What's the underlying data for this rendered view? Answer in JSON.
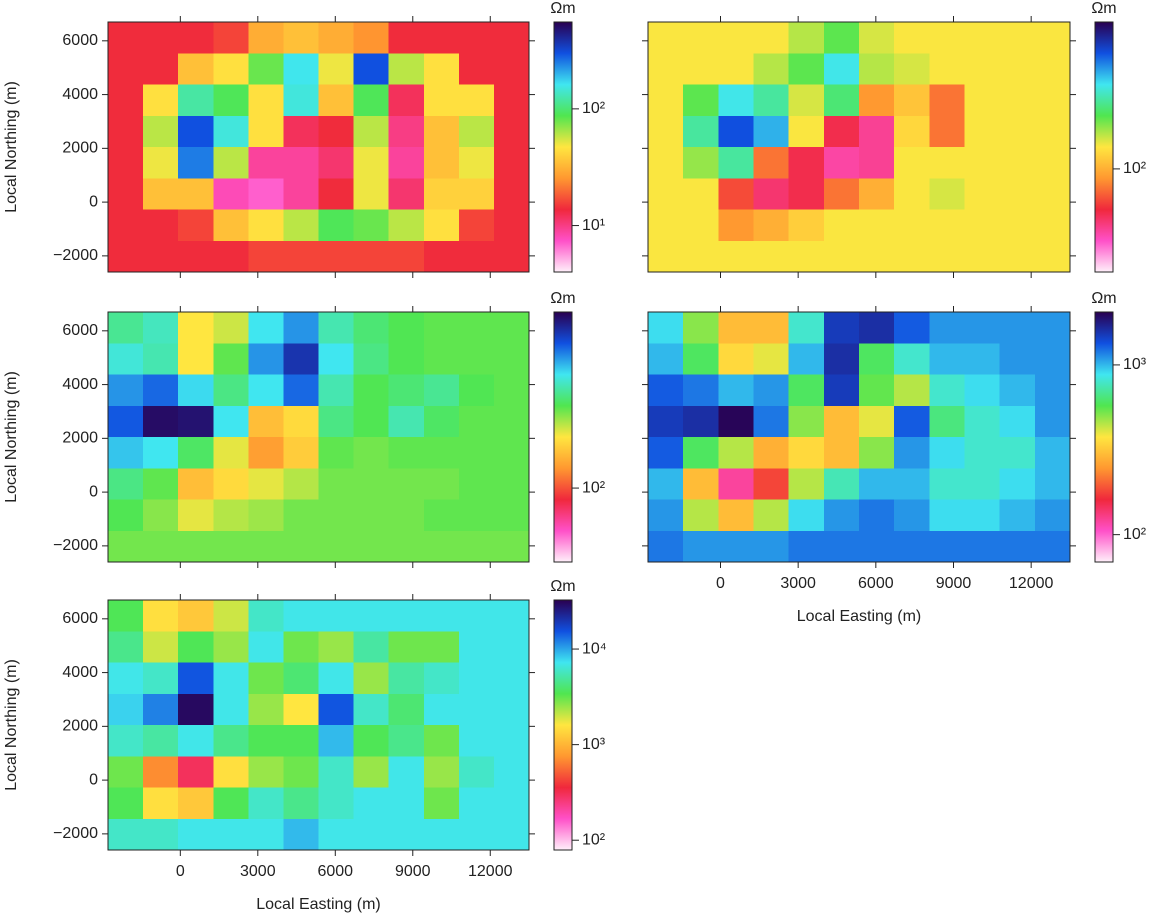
{
  "chart_data": [
    {
      "type": "heatmap",
      "y_label": "Local Northing (m)",
      "x_tick_labels": false,
      "y_tick_labels": true,
      "xlim": [
        -2800,
        13500
      ],
      "ylim": [
        -2600,
        6700
      ],
      "xticks": [
        0,
        3000,
        6000,
        9000,
        12000
      ],
      "yticks": [
        {
          "value": -2000,
          "label": "−2000"
        },
        0,
        2000,
        4000,
        6000
      ],
      "colormap": [
        "#fff0fa",
        "#ff50c8",
        "#f0283c",
        "#ff9830",
        "#ffe640",
        "#50e650",
        "#40e6f0",
        "#1050e0",
        "#2a0050"
      ],
      "colorbar": {
        "label": "Ωm",
        "scale": "log",
        "clim": [
          4,
          555
        ],
        "ticks": [
          {
            "value": 10,
            "label": "10¹"
          },
          {
            "value": 100,
            "label": "10²"
          }
        ]
      },
      "z": [
        [
          14,
          14,
          14,
          16,
          30,
          35,
          30,
          25,
          14,
          14,
          14,
          14
        ],
        [
          14,
          14,
          35,
          45,
          80,
          160,
          50,
          300,
          60,
          45,
          14,
          14
        ],
        [
          14,
          45,
          120,
          90,
          45,
          150,
          35,
          90,
          12,
          45,
          45,
          14
        ],
        [
          14,
          60,
          300,
          150,
          45,
          12,
          14,
          60,
          10,
          35,
          60,
          14
        ],
        [
          14,
          50,
          250,
          60,
          9,
          9,
          11,
          50,
          9,
          35,
          50,
          14
        ],
        [
          14,
          35,
          35,
          8,
          7,
          9,
          14,
          50,
          11,
          40,
          40,
          14
        ],
        [
          14,
          14,
          16,
          35,
          45,
          60,
          90,
          80,
          60,
          45,
          16,
          14
        ],
        [
          14,
          14,
          14,
          14,
          16,
          16,
          16,
          16,
          16,
          14,
          14,
          14
        ]
      ]
    },
    {
      "type": "heatmap",
      "x_tick_labels": false,
      "y_tick_labels": false,
      "xlim": [
        -2800,
        13500
      ],
      "ylim": [
        -2600,
        6700
      ],
      "xticks": [
        0,
        3000,
        6000,
        9000,
        12000
      ],
      "yticks": [
        -2000,
        0,
        2000,
        4000,
        6000
      ],
      "colormap": [
        "#fff0fa",
        "#ff50c8",
        "#f0283c",
        "#ff9830",
        "#ffe640",
        "#50e650",
        "#40e6f0",
        "#1050e0",
        "#2a0050"
      ],
      "colorbar": {
        "label": "Ωm",
        "scale": "log",
        "clim": [
          30.5,
          543
        ],
        "ticks": [
          {
            "value": 100,
            "label": "10²"
          }
        ]
      },
      "z": [
        [
          130,
          130,
          130,
          130,
          150,
          180,
          140,
          130,
          130,
          130,
          130,
          130
        ],
        [
          130,
          130,
          130,
          150,
          180,
          260,
          150,
          140,
          130,
          130,
          130,
          130
        ],
        [
          130,
          180,
          260,
          220,
          140,
          200,
          90,
          110,
          80,
          130,
          130,
          130
        ],
        [
          130,
          220,
          380,
          300,
          130,
          60,
          50,
          120,
          80,
          130,
          130,
          130
        ],
        [
          130,
          160,
          220,
          80,
          60,
          48,
          50,
          130,
          130,
          130,
          130,
          130
        ],
        [
          130,
          130,
          70,
          55,
          60,
          80,
          100,
          130,
          140,
          130,
          130,
          130
        ],
        [
          130,
          130,
          90,
          100,
          115,
          130,
          130,
          130,
          130,
          130,
          130,
          130
        ],
        [
          130,
          130,
          130,
          130,
          130,
          130,
          130,
          130,
          130,
          130,
          130,
          130
        ]
      ]
    },
    {
      "type": "heatmap",
      "y_label": "Local Northing (m)",
      "x_tick_labels": false,
      "y_tick_labels": true,
      "xlim": [
        -2800,
        13500
      ],
      "ylim": [
        -2600,
        6700
      ],
      "xticks": [
        0,
        3000,
        6000,
        9000,
        12000
      ],
      "yticks": [
        {
          "value": -2000,
          "label": "−2000"
        },
        0,
        2000,
        4000,
        6000
      ],
      "colormap": [
        "#fff0fa",
        "#ff50c8",
        "#f0283c",
        "#ff9830",
        "#ffe640",
        "#50e650",
        "#40e6f0",
        "#1050e0",
        "#2a0050"
      ],
      "colorbar": {
        "label": "Ωm",
        "scale": "log",
        "clim": [
          42.7,
          759
        ],
        "ticks": [
          {
            "value": 100,
            "label": "10²"
          }
        ]
      },
      "z": [
        [
          300,
          330,
          180,
          200,
          370,
          450,
          320,
          280,
          260,
          250,
          250,
          250
        ],
        [
          350,
          320,
          180,
          250,
          450,
          600,
          370,
          290,
          260,
          250,
          250,
          250
        ],
        [
          450,
          500,
          380,
          290,
          370,
          500,
          320,
          260,
          280,
          300,
          260,
          250
        ],
        [
          520,
          720,
          700,
          370,
          150,
          170,
          290,
          260,
          320,
          270,
          250,
          250
        ],
        [
          400,
          370,
          270,
          190,
          130,
          160,
          250,
          240,
          250,
          250,
          250,
          250
        ],
        [
          290,
          250,
          150,
          170,
          190,
          210,
          240,
          240,
          240,
          240,
          250,
          250
        ],
        [
          260,
          230,
          190,
          210,
          220,
          240,
          240,
          240,
          240,
          250,
          250,
          250
        ],
        [
          240,
          240,
          240,
          240,
          240,
          240,
          240,
          240,
          240,
          240,
          240,
          240
        ]
      ]
    },
    {
      "type": "heatmap",
      "x_label": "Local Easting (m)",
      "x_tick_labels": true,
      "y_tick_labels": false,
      "xlim": [
        -2800,
        13500
      ],
      "ylim": [
        -2600,
        6700
      ],
      "xticks": [
        0,
        3000,
        6000,
        9000,
        12000
      ],
      "yticks": [
        -2000,
        0,
        2000,
        4000,
        6000
      ],
      "colormap": [
        "#fff0fa",
        "#ff50c8",
        "#f0283c",
        "#ff9830",
        "#ffe640",
        "#50e650",
        "#40e6f0",
        "#1050e0",
        "#2a0050"
      ],
      "colorbar": {
        "label": "Ωm",
        "scale": "log",
        "clim": [
          69,
          2050
        ],
        "ticks": [
          {
            "value": 100,
            "label": "10²"
          },
          {
            "value": 1000,
            "label": "10³"
          }
        ]
      },
      "z": [
        [
          900,
          500,
          300,
          300,
          800,
          1500,
          1600,
          1300,
          1100,
          1100,
          1100,
          1100
        ],
        [
          1000,
          600,
          350,
          400,
          1000,
          1600,
          600,
          800,
          1000,
          1000,
          1100,
          1100
        ],
        [
          1300,
          1200,
          1000,
          1100,
          600,
          1500,
          550,
          450,
          800,
          900,
          1000,
          1100
        ],
        [
          1500,
          1600,
          2000,
          1200,
          500,
          300,
          400,
          1300,
          650,
          800,
          900,
          1100
        ],
        [
          1300,
          600,
          450,
          280,
          350,
          300,
          500,
          1100,
          900,
          800,
          800,
          1000
        ],
        [
          1000,
          300,
          120,
          180,
          450,
          750,
          1000,
          1000,
          800,
          800,
          900,
          1000
        ],
        [
          1100,
          450,
          300,
          450,
          900,
          1100,
          1200,
          1100,
          900,
          900,
          1000,
          1100
        ],
        [
          1200,
          1100,
          1100,
          1100,
          1200,
          1200,
          1200,
          1200,
          1200,
          1200,
          1200,
          1200
        ]
      ]
    },
    {
      "type": "heatmap",
      "x_label": "Local Easting (m)",
      "y_label": "Local Northing (m)",
      "x_tick_labels": true,
      "y_tick_labels": true,
      "xlim": [
        -2800,
        13500
      ],
      "ylim": [
        -2600,
        6700
      ],
      "xticks": [
        0,
        3000,
        6000,
        9000,
        12000
      ],
      "yticks": [
        {
          "value": -2000,
          "label": "−2000"
        },
        0,
        2000,
        4000,
        6000
      ],
      "colormap": [
        "#fff0fa",
        "#ff50c8",
        "#f0283c",
        "#ff9830",
        "#ffe640",
        "#50e650",
        "#40e6f0",
        "#1050e0",
        "#2a0050"
      ],
      "colorbar": {
        "label": "Ωm",
        "scale": "log",
        "clim": [
          79,
          32600
        ],
        "ticks": [
          {
            "value": 100,
            "label": "10²"
          },
          {
            "value": 1000,
            "label": "10³"
          },
          {
            "value": 10000,
            "label": "10⁴"
          }
        ]
      },
      "z": [
        [
          3500,
          1500,
          1200,
          2000,
          6000,
          7000,
          7000,
          7000,
          7000,
          7000,
          7000,
          7000
        ],
        [
          4500,
          2000,
          3500,
          2500,
          7000,
          3000,
          2500,
          5000,
          3000,
          3000,
          7000,
          7000
        ],
        [
          7000,
          6000,
          15000,
          7000,
          3000,
          4000,
          7000,
          2500,
          5000,
          6000,
          7000,
          7000
        ],
        [
          8000,
          12000,
          30000,
          7000,
          2500,
          1600,
          15000,
          6000,
          4000,
          7000,
          7000,
          7000
        ],
        [
          6000,
          5000,
          7000,
          4500,
          3500,
          3500,
          9000,
          3500,
          4500,
          3000,
          7000,
          7000
        ],
        [
          3000,
          700,
          300,
          1500,
          2500,
          3000,
          6000,
          2500,
          7000,
          2500,
          6000,
          7000
        ],
        [
          3500,
          1500,
          1200,
          3500,
          6000,
          4500,
          6000,
          7000,
          7000,
          3000,
          7000,
          7000
        ],
        [
          6000,
          6000,
          7000,
          7000,
          7000,
          9000,
          7000,
          7000,
          7000,
          7000,
          7000,
          7000
        ]
      ]
    }
  ]
}
